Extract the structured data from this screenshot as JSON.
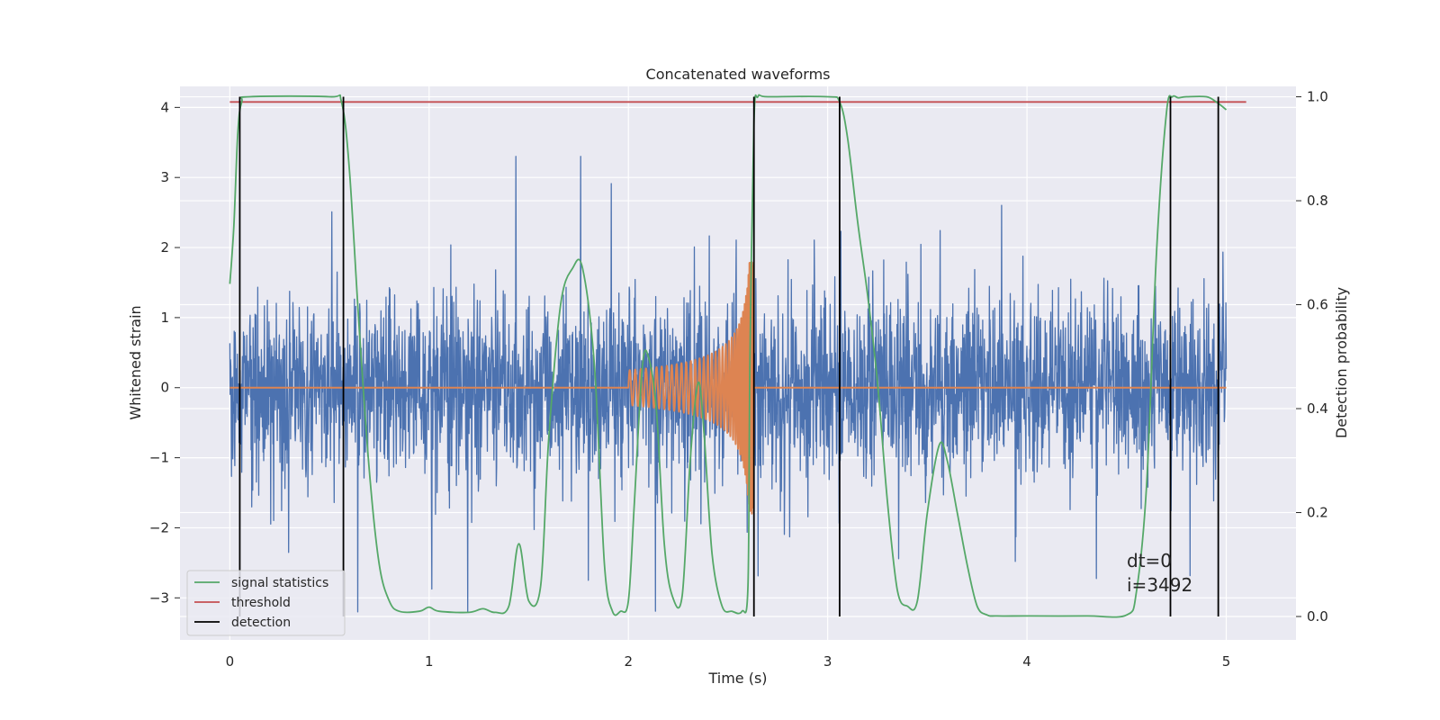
{
  "chart_data": {
    "type": "line",
    "title": "Concatenated waveforms",
    "xlabel": "Time (s)",
    "ylabel": "Whitened strain",
    "y2label": "Detection probability",
    "xlim": [
      -0.25,
      5.35
    ],
    "ylim": [
      -3.6,
      4.3
    ],
    "y2lim": [
      -0.045,
      1.02
    ],
    "xticks": [
      "0",
      "1",
      "2",
      "3",
      "4",
      "5"
    ],
    "yticks": [
      "4",
      "3",
      "2",
      "1",
      "0",
      "−1",
      "−2",
      "−3"
    ],
    "y2ticks": [
      "1.0",
      "0.8",
      "0.6",
      "0.4",
      "0.2",
      "0.0"
    ],
    "grid": true,
    "background": "#eaeaf2",
    "legend": {
      "location": "lower-left",
      "entries": [
        {
          "label": "signal statistics",
          "color": "#55a868"
        },
        {
          "label": "threshold",
          "color": "#c44e52"
        },
        {
          "label": "detection",
          "color": "#000000"
        }
      ]
    },
    "series": [
      {
        "name": "",
        "role": "strain noise",
        "axis": "left",
        "color": "#4c72b0",
        "x_range": [
          0,
          5.0
        ],
        "typical_amplitude": 1.4,
        "max_peak": 3.3,
        "min_peak": -3.2
      },
      {
        "name": "",
        "role": "injected chirp",
        "axis": "left",
        "color": "#dd8452",
        "x_range": [
          0,
          5.0
        ],
        "chirp_start": 2.0,
        "chirp_end": 2.63,
        "chirp_start_amplitude": 0.25,
        "chirp_peak": 1.8
      },
      {
        "name": "threshold",
        "axis": "right",
        "color": "#c44e52",
        "x": [
          0,
          5.1
        ],
        "y": [
          0.99,
          0.99
        ]
      },
      {
        "name": "signal statistics",
        "axis": "right",
        "color": "#55a868",
        "x": [
          0.0,
          0.02,
          0.04,
          0.06,
          0.1,
          0.5,
          0.56,
          0.6,
          0.65,
          0.7,
          0.75,
          0.8,
          0.85,
          0.95,
          1.0,
          1.05,
          1.2,
          1.27,
          1.33,
          1.4,
          1.45,
          1.5,
          1.56,
          1.6,
          1.66,
          1.72,
          1.77,
          1.83,
          1.88,
          1.92,
          1.96,
          2.0,
          2.03,
          2.07,
          2.1,
          2.14,
          2.18,
          2.22,
          2.27,
          2.31,
          2.35,
          2.38,
          2.42,
          2.47,
          2.52,
          2.57,
          2.6,
          2.61,
          2.63,
          2.65,
          2.7,
          3.0,
          3.06,
          3.1,
          3.15,
          3.2,
          3.25,
          3.3,
          3.35,
          3.4,
          3.45,
          3.5,
          3.56,
          3.6,
          3.65,
          3.7,
          3.75,
          3.8,
          3.85,
          4.0,
          4.3,
          4.5,
          4.55,
          4.6,
          4.65,
          4.7,
          4.73,
          4.76,
          4.8,
          4.9,
          4.95,
          5.0
        ],
        "y": [
          0.64,
          0.75,
          0.93,
          0.99,
          1.0,
          1.0,
          0.99,
          0.86,
          0.55,
          0.28,
          0.1,
          0.03,
          0.01,
          0.01,
          0.018,
          0.01,
          0.008,
          0.015,
          0.008,
          0.02,
          0.14,
          0.03,
          0.06,
          0.34,
          0.6,
          0.67,
          0.67,
          0.48,
          0.1,
          0.01,
          0.01,
          0.03,
          0.22,
          0.48,
          0.5,
          0.4,
          0.14,
          0.04,
          0.04,
          0.3,
          0.45,
          0.35,
          0.12,
          0.02,
          0.01,
          0.01,
          0.06,
          0.5,
          0.95,
          1.0,
          1.0,
          1.0,
          0.99,
          0.92,
          0.76,
          0.62,
          0.45,
          0.22,
          0.05,
          0.02,
          0.03,
          0.2,
          0.33,
          0.3,
          0.2,
          0.1,
          0.02,
          0.003,
          0.001,
          0.001,
          0.001,
          0.003,
          0.05,
          0.25,
          0.7,
          0.97,
          1.0,
          0.998,
          1.0,
          1.0,
          0.99,
          0.975
        ]
      },
      {
        "name": "detection",
        "axis": "right",
        "color": "#000000",
        "x": [
          0.05,
          0.57,
          2.63,
          3.06,
          4.72,
          4.96
        ]
      }
    ],
    "annotations": [
      "dt=0",
      "i=3492"
    ]
  }
}
